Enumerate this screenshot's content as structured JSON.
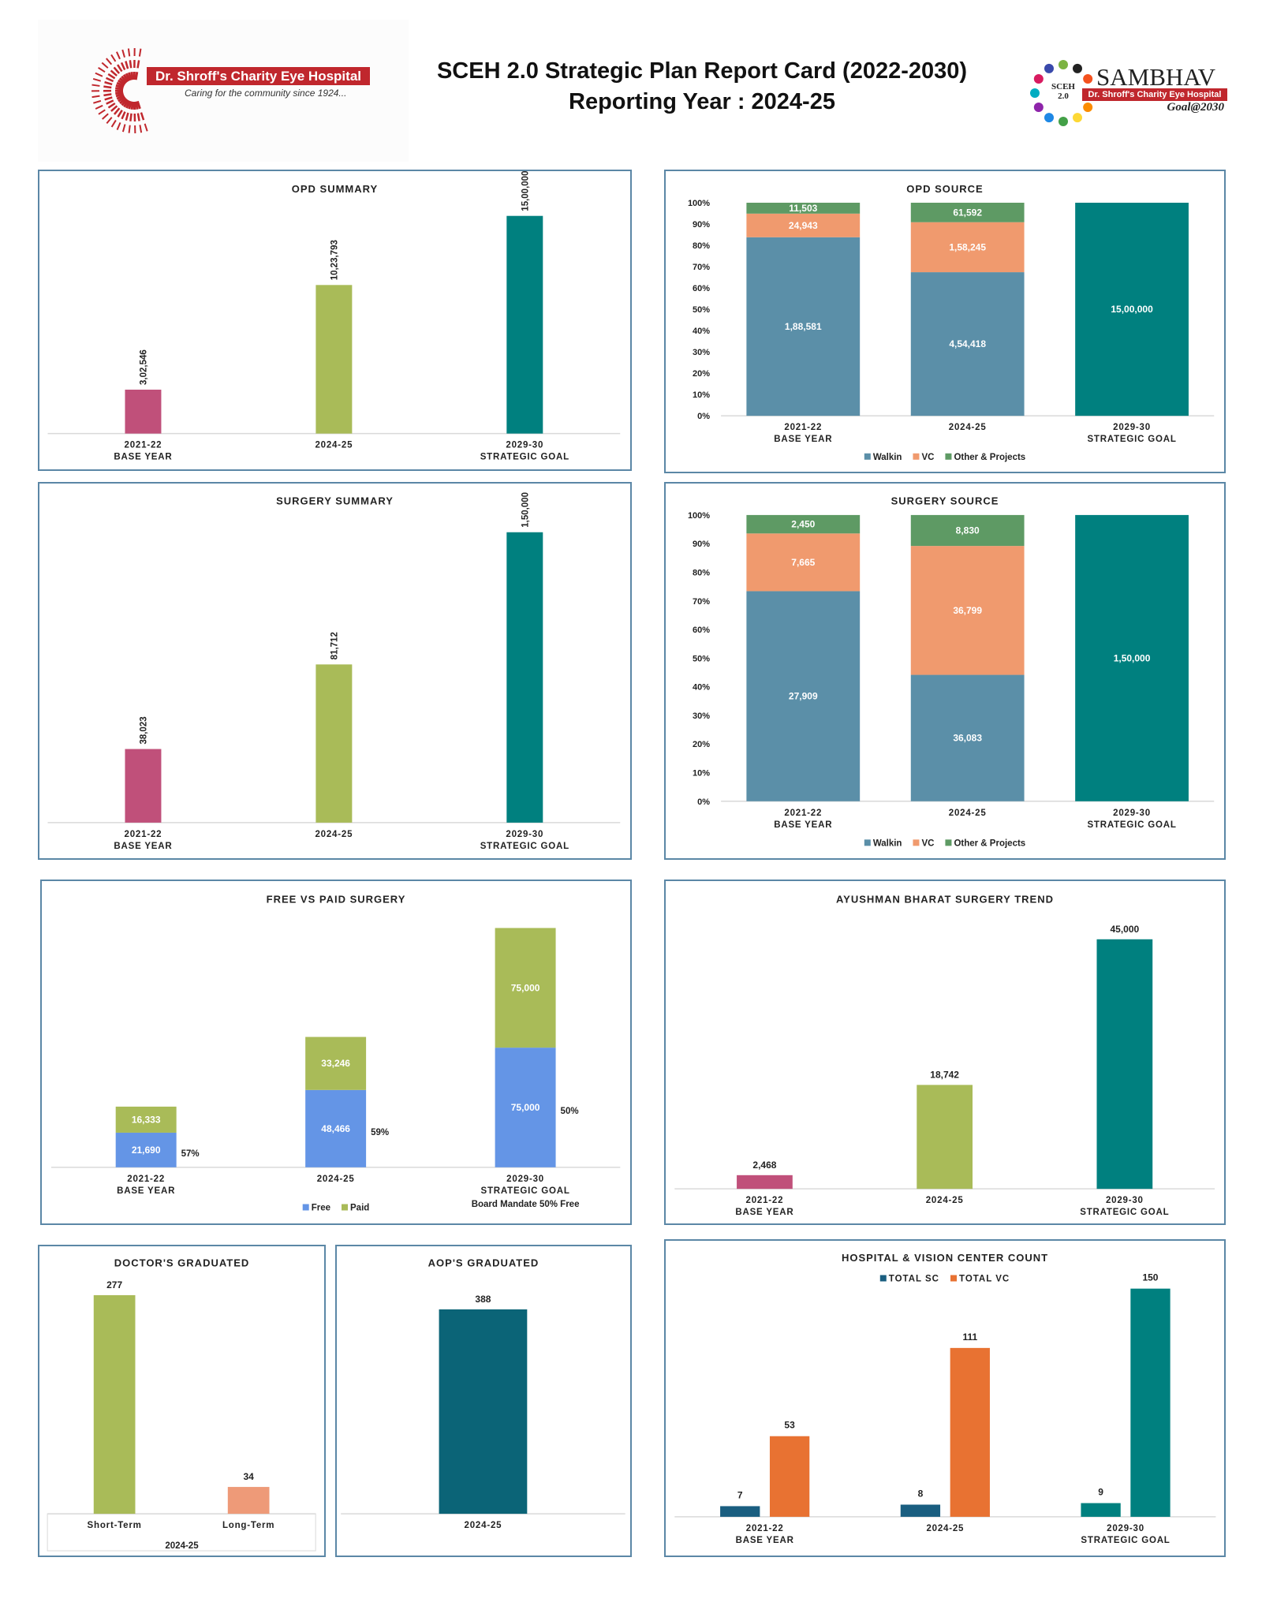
{
  "header": {
    "title_line1": "SCEH 2.0 Strategic Plan Report Card (2022-2030)",
    "title_line2": "Reporting Year : 2024-25",
    "left_logo": {
      "name": "Dr. Shroff's Charity Eye Hospital",
      "tagline": "Caring for the community since 1924..."
    },
    "right_logo": {
      "badge": "SCEH 2.0",
      "name": "SAMBHAV",
      "banner": "Dr. Shroff's Charity Eye Hospital",
      "goal": "Goal@2030"
    }
  },
  "chart_data": [
    {
      "type": "bar",
      "title": "OPD SUMMARY",
      "categories": [
        [
          "2021-22",
          "BASE YEAR"
        ],
        [
          "2024-25"
        ],
        [
          "2029-30",
          "STRATEGIC GOAL"
        ]
      ],
      "values": [
        302546,
        1023793,
        1500000
      ],
      "value_labels": [
        "3,02,546",
        "10,23,793",
        "15,00,000"
      ],
      "colors": [
        "#c0507a",
        "#a9bb58",
        "#00807f"
      ]
    },
    {
      "type": "bar",
      "stacking": "percent",
      "title": "OPD SOURCE",
      "categories": [
        [
          "2021-22",
          "BASE YEAR"
        ],
        [
          "2024-25"
        ],
        [
          "2029-30",
          "STRATEGIC GOAL"
        ]
      ],
      "y_ticks": [
        "0%",
        "10%",
        "20%",
        "30%",
        "40%",
        "50%",
        "60%",
        "70%",
        "80%",
        "90%",
        "100%"
      ],
      "ylim": [
        0,
        100
      ],
      "series": [
        {
          "name": "Walkin",
          "color": "#5b8fa8",
          "values": [
            188581,
            454418,
            null
          ],
          "labels": [
            "1,88,581",
            "4,54,418",
            ""
          ]
        },
        {
          "name": "VC",
          "color": "#f09a6e",
          "values": [
            24943,
            158245,
            null
          ],
          "labels": [
            "24,943",
            "1,58,245",
            ""
          ]
        },
        {
          "name": "Other & Projects",
          "color": "#5e9a64",
          "values": [
            11503,
            61592,
            null
          ],
          "labels": [
            "11,503",
            "61,592",
            ""
          ]
        }
      ],
      "goal_bar": {
        "category_index": 2,
        "value": 1500000,
        "label": "15,00,000",
        "color": "#00807f"
      },
      "legend": "bottom"
    },
    {
      "type": "bar",
      "title": "SURGERY SUMMARY",
      "categories": [
        [
          "2021-22",
          "BASE YEAR"
        ],
        [
          "2024-25"
        ],
        [
          "2029-30",
          "STRATEGIC GOAL"
        ]
      ],
      "values": [
        38023,
        81712,
        150000
      ],
      "value_labels": [
        "38,023",
        "81,712",
        "1,50,000"
      ],
      "colors": [
        "#c0507a",
        "#a9bb58",
        "#00807f"
      ]
    },
    {
      "type": "bar",
      "stacking": "percent",
      "title": "SURGERY SOURCE",
      "categories": [
        [
          "2021-22",
          "BASE YEAR"
        ],
        [
          "2024-25"
        ],
        [
          "2029-30",
          "STRATEGIC GOAL"
        ]
      ],
      "y_ticks": [
        "0%",
        "10%",
        "20%",
        "30%",
        "40%",
        "50%",
        "60%",
        "70%",
        "80%",
        "90%",
        "100%"
      ],
      "ylim": [
        0,
        100
      ],
      "series": [
        {
          "name": "Walkin",
          "color": "#5b8fa8",
          "values": [
            27909,
            36083,
            null
          ],
          "labels": [
            "27,909",
            "36,083",
            ""
          ]
        },
        {
          "name": "VC",
          "color": "#f09a6e",
          "values": [
            7665,
            36799,
            null
          ],
          "labels": [
            "7,665",
            "36,799",
            ""
          ]
        },
        {
          "name": "Other & Projects",
          "color": "#5e9a64",
          "values": [
            2450,
            8830,
            null
          ],
          "labels": [
            "2,450",
            "8,830",
            ""
          ]
        }
      ],
      "goal_bar": {
        "category_index": 2,
        "value": 150000,
        "label": "1,50,000",
        "color": "#00807f"
      },
      "legend": "bottom"
    },
    {
      "type": "bar",
      "stacking": "stacked",
      "title": "FREE VS PAID SURGERY",
      "categories": [
        [
          "2021-22",
          "BASE YEAR"
        ],
        [
          "2024-25"
        ],
        [
          "2029-30",
          "STRATEGIC GOAL"
        ]
      ],
      "series": [
        {
          "name": "Free",
          "color": "#6495e6",
          "values": [
            21690,
            48466,
            75000
          ],
          "labels": [
            "21,690",
            "48,466",
            "75,000"
          ]
        },
        {
          "name": "Paid",
          "color": "#a9bb58",
          "values": [
            16333,
            33246,
            75000
          ],
          "labels": [
            "16,333",
            "33,246",
            "75,000"
          ]
        }
      ],
      "free_share_labels": [
        "57%",
        "59%",
        "50%"
      ],
      "note": "Board Mandate 50% Free",
      "legend": "bottom"
    },
    {
      "type": "bar",
      "title": "AYUSHMAN BHARAT SURGERY TREND",
      "categories": [
        [
          "2021-22",
          "BASE YEAR"
        ],
        [
          "2024-25"
        ],
        [
          "2029-30",
          "STRATEGIC GOAL"
        ]
      ],
      "values": [
        2468,
        18742,
        45000
      ],
      "value_labels": [
        "2,468",
        "18,742",
        "45,000"
      ],
      "colors": [
        "#c0507a",
        "#a9bb58",
        "#00807f"
      ]
    },
    {
      "type": "bar",
      "title": "DOCTOR'S GRADUATED",
      "categories": [
        [
          "Short-Term"
        ],
        [
          "Long-Term"
        ]
      ],
      "group_label": "2024-25",
      "values": [
        277,
        34
      ],
      "value_labels": [
        "277",
        "34"
      ],
      "colors": [
        "#a9bb58",
        "#ee9a78"
      ]
    },
    {
      "type": "bar",
      "title": "AOP'S GRADUATED",
      "categories": [
        [
          "2024-25"
        ]
      ],
      "values": [
        388
      ],
      "value_labels": [
        "388"
      ],
      "colors": [
        "#0b6477"
      ]
    },
    {
      "type": "bar",
      "stacking": "grouped",
      "title": "HOSPITAL & VISION CENTER COUNT",
      "categories": [
        [
          "2021-22",
          "BASE YEAR"
        ],
        [
          "2024-25"
        ],
        [
          "2029-30",
          "STRATEGIC GOAL"
        ]
      ],
      "series": [
        {
          "name": "TOTAL SC",
          "color": "#1a5e80",
          "values": [
            7,
            8,
            9
          ],
          "labels": [
            "7",
            "8",
            "9"
          ],
          "bar_colors": [
            "#1a5e80",
            "#1a5e80",
            "#00807f"
          ]
        },
        {
          "name": "TOTAL VC",
          "color": "#e87232",
          "values": [
            53,
            111,
            150
          ],
          "labels": [
            "53",
            "111",
            "150"
          ],
          "bar_colors": [
            "#e87232",
            "#e87232",
            "#00807f"
          ]
        }
      ],
      "legend": "top"
    }
  ]
}
